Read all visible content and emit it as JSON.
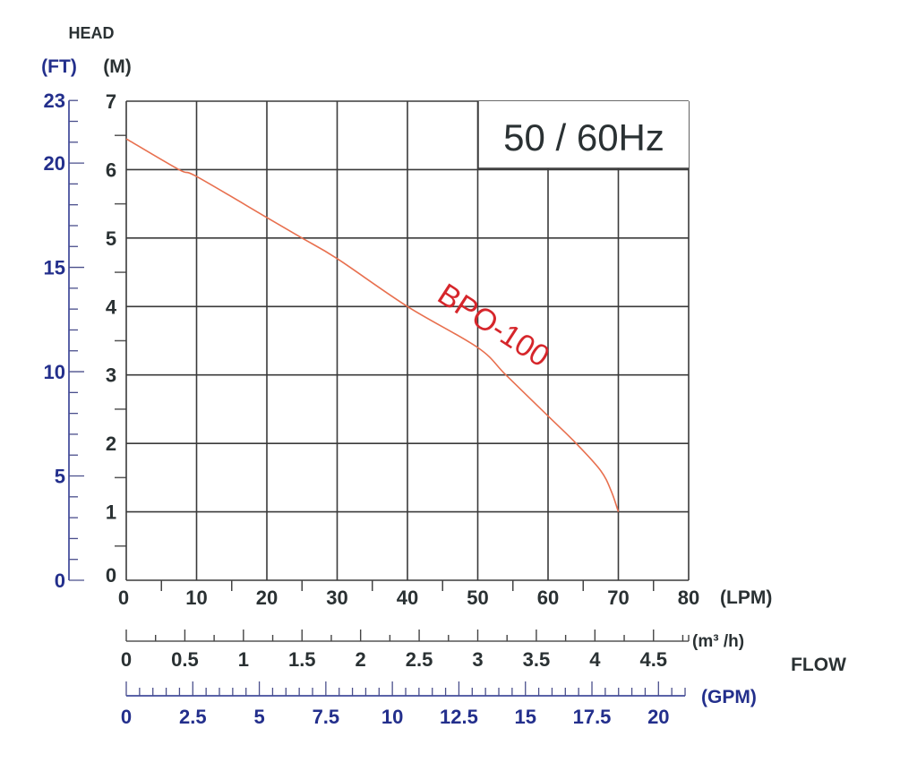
{
  "chart_data": {
    "type": "line",
    "title": "50 / 60Hz",
    "head_label": "HEAD",
    "y_unit_left": "(FT)",
    "y_unit_right": "(M)",
    "xlabel": "FLOW",
    "x_unit_lpm": "(LPM)",
    "x_unit_m3h": "(m³ /h)",
    "x_unit_gpm": "(GPM)",
    "xlim": [
      0,
      80
    ],
    "ylim": [
      0,
      7
    ],
    "grid": true,
    "x_ticks_lpm": [
      "0",
      "10",
      "20",
      "30",
      "40",
      "50",
      "60",
      "70",
      "80"
    ],
    "y_ticks_m": [
      "0",
      "1",
      "2",
      "3",
      "4",
      "5",
      "6",
      "7"
    ],
    "y_ticks_ft": [
      "0",
      "5",
      "10",
      "15",
      "20",
      "23"
    ],
    "x_ticks_m3h": [
      "0",
      "0.5",
      "1",
      "1.5",
      "2",
      "2.5",
      "3",
      "3.5",
      "4",
      "4.5"
    ],
    "x_ticks_gpm": [
      "0",
      "2.5",
      "5",
      "7.5",
      "10",
      "12.5",
      "15",
      "17.5",
      "20"
    ],
    "series": [
      {
        "name": "BPO-100",
        "color": "#e8704f",
        "x": [
          0,
          7.5,
          10,
          20,
          25,
          30,
          40,
          50,
          54,
          60,
          64,
          67.5,
          69,
          70
        ],
        "y": [
          6.45,
          6.0,
          5.9,
          5.3,
          5.0,
          4.7,
          4.0,
          3.4,
          3.0,
          2.4,
          2.0,
          1.6,
          1.3,
          1.0
        ]
      }
    ],
    "annotations": [
      {
        "text": "BPO-100",
        "x": 44,
        "y": 4.1,
        "color": "#d6262b",
        "rotation": 33
      }
    ]
  },
  "colors": {
    "grid": "#3a3a3a",
    "dark_text": "#2a3133",
    "blue_text": "#232f8c",
    "curve": "#e8704f",
    "curve_label": "#d6262b"
  }
}
